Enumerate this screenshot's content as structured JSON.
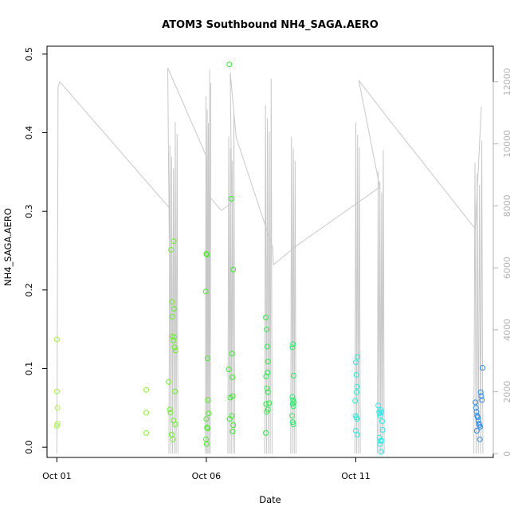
{
  "chart_data": {
    "type": "scatter",
    "title": "ATOM3 Southbound NH4_SAGA.AERO",
    "xlabel": "Date",
    "ylabel": "NH4_SAGA.AERO",
    "x_ticks": [
      {
        "label": "Oct 01",
        "day": 0
      },
      {
        "label": "Oct 06",
        "day": 5
      },
      {
        "label": "Oct 11",
        "day": 10
      }
    ],
    "x_range_days": [
      -0.33,
      14.6
    ],
    "y_range": [
      -0.013,
      0.51
    ],
    "y_ticks": [
      0.0,
      0.1,
      0.2,
      0.3,
      0.4,
      0.5
    ],
    "y2_range": [
      -120,
      13150
    ],
    "y2_ticks": [
      0,
      2000,
      4000,
      6000,
      8000,
      10000,
      12000
    ],
    "y2_color": "#b3b3b3",
    "grid": false,
    "marker": "open-circle",
    "points_color_note": "colored by date: yellow-green to blue",
    "points": [
      {
        "d": 0.0,
        "v": 0.137,
        "c": "#a6f04c"
      },
      {
        "d": 0.0,
        "v": 0.071,
        "c": "#a6f04c"
      },
      {
        "d": 0.02,
        "v": 0.05,
        "c": "#a6f04c"
      },
      {
        "d": 0.02,
        "v": 0.03,
        "c": "#a6f04c"
      },
      {
        "d": 0.0,
        "v": 0.027,
        "c": "#a6f04c"
      },
      {
        "d": 2.99,
        "v": 0.073,
        "c": "#86ee3a"
      },
      {
        "d": 2.99,
        "v": 0.044,
        "c": "#86ee3a"
      },
      {
        "d": 2.99,
        "v": 0.018,
        "c": "#86ee3a"
      },
      {
        "d": 3.74,
        "v": 0.083,
        "c": "#6fec2e"
      },
      {
        "d": 3.78,
        "v": 0.048,
        "c": "#6fec2e"
      },
      {
        "d": 3.8,
        "v": 0.044,
        "c": "#6fec2e"
      },
      {
        "d": 3.82,
        "v": 0.251,
        "c": "#6fec2e"
      },
      {
        "d": 3.84,
        "v": 0.016,
        "c": "#6fec2e"
      },
      {
        "d": 3.85,
        "v": 0.185,
        "c": "#6fec2e"
      },
      {
        "d": 3.86,
        "v": 0.141,
        "c": "#6fec2e"
      },
      {
        "d": 3.88,
        "v": 0.01,
        "c": "#6fec2e"
      },
      {
        "d": 3.9,
        "v": 0.136,
        "c": "#6fec2e"
      },
      {
        "d": 3.91,
        "v": 0.262,
        "c": "#6fec2e"
      },
      {
        "d": 3.92,
        "v": 0.176,
        "c": "#6fec2e"
      },
      {
        "d": 3.93,
        "v": 0.14,
        "c": "#6fec2e"
      },
      {
        "d": 3.94,
        "v": 0.127,
        "c": "#6fec2e"
      },
      {
        "d": 3.95,
        "v": 0.071,
        "c": "#6fec2e"
      },
      {
        "d": 3.96,
        "v": 0.029,
        "c": "#6fec2e"
      },
      {
        "d": 3.97,
        "v": 0.123,
        "c": "#6fec2e"
      },
      {
        "d": 3.9,
        "v": 0.034,
        "c": "#6fec2e"
      },
      {
        "d": 3.86,
        "v": 0.166,
        "c": "#6fec2e"
      },
      {
        "d": 4.98,
        "v": 0.198,
        "c": "#4dea2a"
      },
      {
        "d": 5.0,
        "v": 0.246,
        "c": "#4dea2a"
      },
      {
        "d": 5.02,
        "v": 0.245,
        "c": "#4dea2a"
      },
      {
        "d": 5.04,
        "v": 0.113,
        "c": "#4dea2a"
      },
      {
        "d": 5.06,
        "v": 0.06,
        "c": "#4dea2a"
      },
      {
        "d": 5.08,
        "v": 0.043,
        "c": "#4dea2a"
      },
      {
        "d": 5.0,
        "v": 0.036,
        "c": "#4dea2a"
      },
      {
        "d": 5.02,
        "v": 0.025,
        "c": "#4dea2a"
      },
      {
        "d": 4.99,
        "v": 0.01,
        "c": "#4dea2a"
      },
      {
        "d": 5.01,
        "v": 0.004,
        "c": "#4dea2a"
      },
      {
        "d": 5.05,
        "v": 0.024,
        "c": "#4dea2a"
      },
      {
        "d": 5.75,
        "v": 0.099,
        "c": "#38e82c"
      },
      {
        "d": 5.78,
        "v": 0.036,
        "c": "#38e82c"
      },
      {
        "d": 5.8,
        "v": 0.063,
        "c": "#38e82c"
      },
      {
        "d": 5.84,
        "v": 0.316,
        "c": "#38e82c"
      },
      {
        "d": 5.86,
        "v": 0.119,
        "c": "#38e82c"
      },
      {
        "d": 5.87,
        "v": 0.089,
        "c": "#38e82c"
      },
      {
        "d": 5.88,
        "v": 0.065,
        "c": "#38e82c"
      },
      {
        "d": 5.9,
        "v": 0.226,
        "c": "#38e82c"
      },
      {
        "d": 5.85,
        "v": 0.04,
        "c": "#38e82c"
      },
      {
        "d": 5.9,
        "v": 0.028,
        "c": "#38e82c"
      },
      {
        "d": 5.88,
        "v": 0.02,
        "c": "#38e82c"
      },
      {
        "d": 5.77,
        "v": 0.487,
        "c": "#38e82c"
      },
      {
        "d": 6.99,
        "v": 0.165,
        "c": "#2ee84a"
      },
      {
        "d": 7.02,
        "v": 0.15,
        "c": "#2ee84a"
      },
      {
        "d": 7.04,
        "v": 0.128,
        "c": "#2ee84a"
      },
      {
        "d": 7.06,
        "v": 0.109,
        "c": "#2ee84a"
      },
      {
        "d": 7.0,
        "v": 0.09,
        "c": "#2ee84a"
      },
      {
        "d": 7.05,
        "v": 0.095,
        "c": "#2ee84a"
      },
      {
        "d": 7.03,
        "v": 0.075,
        "c": "#2ee84a"
      },
      {
        "d": 7.06,
        "v": 0.07,
        "c": "#2ee84a"
      },
      {
        "d": 7.0,
        "v": 0.055,
        "c": "#2ee84a"
      },
      {
        "d": 7.1,
        "v": 0.056,
        "c": "#2ee84a"
      },
      {
        "d": 7.02,
        "v": 0.045,
        "c": "#2ee84a"
      },
      {
        "d": 7.06,
        "v": 0.048,
        "c": "#2ee84a"
      },
      {
        "d": 6.99,
        "v": 0.018,
        "c": "#2ee84a"
      },
      {
        "d": 7.88,
        "v": 0.127,
        "c": "#2ee86a"
      },
      {
        "d": 7.9,
        "v": 0.131,
        "c": "#2ee86a"
      },
      {
        "d": 7.92,
        "v": 0.091,
        "c": "#2ee86a"
      },
      {
        "d": 7.88,
        "v": 0.064,
        "c": "#2ee86a"
      },
      {
        "d": 7.9,
        "v": 0.06,
        "c": "#2ee86a"
      },
      {
        "d": 7.91,
        "v": 0.052,
        "c": "#2ee86a"
      },
      {
        "d": 7.89,
        "v": 0.055,
        "c": "#2ee86a"
      },
      {
        "d": 7.93,
        "v": 0.057,
        "c": "#2ee86a"
      },
      {
        "d": 7.87,
        "v": 0.04,
        "c": "#2ee86a"
      },
      {
        "d": 7.89,
        "v": 0.032,
        "c": "#2ee86a"
      },
      {
        "d": 7.91,
        "v": 0.029,
        "c": "#2ee86a"
      },
      {
        "d": 10.0,
        "v": 0.108,
        "c": "#2ee8d6"
      },
      {
        "d": 10.06,
        "v": 0.115,
        "c": "#2ee8d6"
      },
      {
        "d": 10.02,
        "v": 0.092,
        "c": "#2ee8d6"
      },
      {
        "d": 10.04,
        "v": 0.077,
        "c": "#2ee8d6"
      },
      {
        "d": 9.98,
        "v": 0.059,
        "c": "#2ee8d6"
      },
      {
        "d": 10.03,
        "v": 0.07,
        "c": "#2ee8d6"
      },
      {
        "d": 9.99,
        "v": 0.04,
        "c": "#2ee8d6"
      },
      {
        "d": 10.02,
        "v": 0.038,
        "c": "#2ee8d6"
      },
      {
        "d": 10.04,
        "v": 0.036,
        "c": "#2ee8d6"
      },
      {
        "d": 10.0,
        "v": 0.021,
        "c": "#2ee8d6"
      },
      {
        "d": 10.05,
        "v": 0.016,
        "c": "#2ee8d6"
      },
      {
        "d": 10.75,
        "v": 0.053,
        "c": "#2ee8e8"
      },
      {
        "d": 10.78,
        "v": 0.045,
        "c": "#2ee8e8"
      },
      {
        "d": 10.8,
        "v": 0.043,
        "c": "#2ee8e8"
      },
      {
        "d": 10.82,
        "v": 0.04,
        "c": "#2ee8e8"
      },
      {
        "d": 10.84,
        "v": 0.047,
        "c": "#2ee8e8"
      },
      {
        "d": 10.86,
        "v": 0.044,
        "c": "#2ee8e8"
      },
      {
        "d": 10.88,
        "v": 0.033,
        "c": "#2ee8e8"
      },
      {
        "d": 10.9,
        "v": 0.022,
        "c": "#2ee8e8"
      },
      {
        "d": 10.79,
        "v": 0.012,
        "c": "#2ee8e8"
      },
      {
        "d": 10.83,
        "v": 0.008,
        "c": "#2ee8e8"
      },
      {
        "d": 10.87,
        "v": 0.008,
        "c": "#2ee8e8"
      },
      {
        "d": 10.81,
        "v": 0.004,
        "c": "#2ee8e8"
      },
      {
        "d": 10.85,
        "v": -0.006,
        "c": "#2ee8e8"
      },
      {
        "d": 14.0,
        "v": 0.057,
        "c": "#2e8ce8"
      },
      {
        "d": 14.02,
        "v": 0.05,
        "c": "#2e8ce8"
      },
      {
        "d": 14.04,
        "v": 0.045,
        "c": "#2e8ce8"
      },
      {
        "d": 14.06,
        "v": 0.04,
        "c": "#2e8ce8"
      },
      {
        "d": 14.08,
        "v": 0.038,
        "c": "#2e8ce8"
      },
      {
        "d": 14.1,
        "v": 0.034,
        "c": "#2e8ce8"
      },
      {
        "d": 14.12,
        "v": 0.03,
        "c": "#2e8ce8"
      },
      {
        "d": 14.14,
        "v": 0.028,
        "c": "#2e8ce8"
      },
      {
        "d": 14.16,
        "v": 0.026,
        "c": "#2e8ce8"
      },
      {
        "d": 14.05,
        "v": 0.021,
        "c": "#2e8ce8"
      },
      {
        "d": 14.18,
        "v": 0.07,
        "c": "#2e8ce8"
      },
      {
        "d": 14.2,
        "v": 0.065,
        "c": "#2e8ce8"
      },
      {
        "d": 14.22,
        "v": 0.06,
        "c": "#2e8ce8"
      },
      {
        "d": 14.24,
        "v": 0.101,
        "c": "#2e8ce8"
      },
      {
        "d": 14.15,
        "v": 0.01,
        "c": "#2e8ce8"
      }
    ],
    "altitude_series": {
      "color": "#c8c8c8",
      "axis": "right",
      "transit": [
        [
          0.0,
          0
        ],
        [
          0.04,
          11850
        ],
        [
          0.1,
          12000
        ],
        [
          3.75,
          7950
        ],
        [
          3.76,
          6900
        ],
        [
          3.71,
          12450
        ],
        [
          5.0,
          9600
        ],
        [
          5.02,
          8400
        ],
        [
          5.5,
          7850
        ],
        [
          5.85,
          8100
        ],
        [
          5.8,
          12300
        ],
        [
          6.0,
          10200
        ],
        [
          7.22,
          6650
        ],
        [
          7.25,
          6100
        ],
        [
          8.0,
          6700
        ],
        [
          10.8,
          8600
        ],
        [
          10.1,
          12050
        ],
        [
          11.1,
          10800
        ],
        [
          14.0,
          7250
        ],
        [
          14.2,
          11200
        ]
      ],
      "profiles": [
        {
          "start": 3.75,
          "end": 4.05,
          "count": 10,
          "peak": 10700
        },
        {
          "start": 4.97,
          "end": 5.15,
          "count": 9,
          "peak": 12400
        },
        {
          "start": 5.72,
          "end": 5.95,
          "count": 8,
          "peak": 11000
        },
        {
          "start": 6.95,
          "end": 7.2,
          "count": 8,
          "peak": 12100
        },
        {
          "start": 7.82,
          "end": 8.0,
          "count": 6,
          "peak": 11000
        },
        {
          "start": 9.97,
          "end": 10.15,
          "count": 6,
          "peak": 11500
        },
        {
          "start": 10.72,
          "end": 10.95,
          "count": 8,
          "peak": 9800
        },
        {
          "start": 13.95,
          "end": 14.25,
          "count": 8,
          "peak": 10100
        }
      ]
    }
  }
}
